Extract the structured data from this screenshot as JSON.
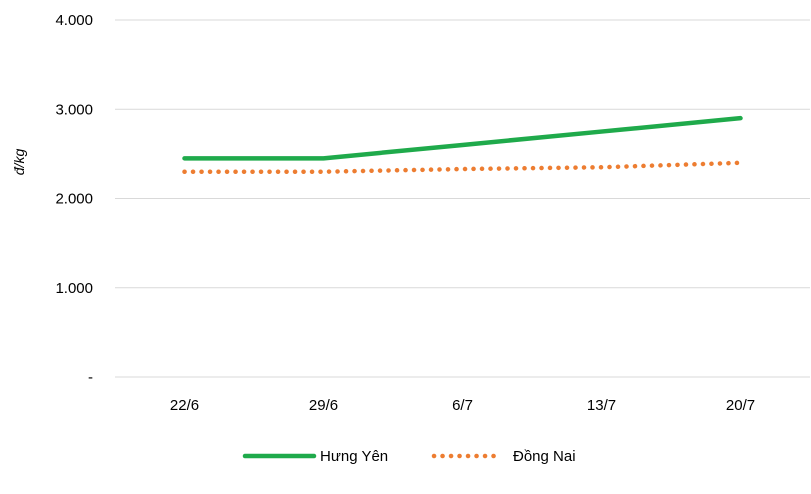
{
  "chart_data": {
    "type": "line",
    "title": "",
    "xlabel": "",
    "ylabel": "đ/kg",
    "categories": [
      "22/6",
      "29/6",
      "6/7",
      "13/7",
      "20/7"
    ],
    "y_tick_labels": [
      "-",
      "1.000",
      "2.000",
      "3.000",
      "4.000"
    ],
    "ylim": [
      0,
      4000
    ],
    "grid": true,
    "legend_position": "bottom",
    "series": [
      {
        "name": "Hưng Yên",
        "values": [
          2450,
          2450,
          2600,
          2750,
          2900
        ],
        "color": "#1FAA4B",
        "style": "solid"
      },
      {
        "name": "Đồng Nai",
        "values": [
          2300,
          2300,
          2330,
          2350,
          2400
        ],
        "color": "#ED7D31",
        "style": "dotted"
      }
    ]
  }
}
